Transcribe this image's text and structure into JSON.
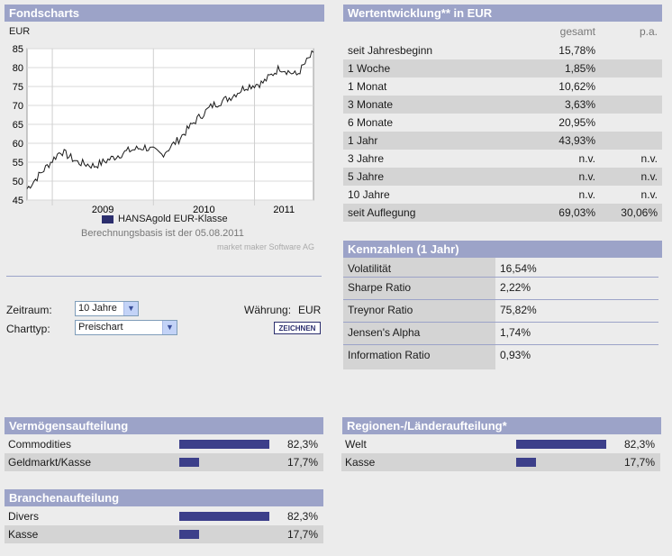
{
  "fondscharts": {
    "title": "Fondscharts",
    "currency_label": "EUR",
    "y_ticks": [
      "85",
      "80",
      "75",
      "70",
      "65",
      "60",
      "55",
      "50",
      "45"
    ],
    "x_ticks": [
      "2009",
      "2010",
      "2011"
    ],
    "legend": "HANSAgold EUR-Klasse",
    "basis": "Berechnungsbasis ist der 05.08.2011",
    "credit": "market maker Software AG"
  },
  "controls": {
    "zeitraum_label": "Zeitraum:",
    "zeitraum_value": "10 Jahre",
    "waehrung_label": "Währung:",
    "waehrung_value": "EUR",
    "charttyp_label": "Charttyp:",
    "charttyp_value": "Preischart",
    "draw_button": "ZEICHNEN"
  },
  "wertentwicklung": {
    "title": "Wertentwicklung** in EUR",
    "col_gesamt": "gesamt",
    "col_pa": "p.a.",
    "rows": [
      {
        "label": "seit Jahresbeginn",
        "gesamt": "15,78%",
        "pa": ""
      },
      {
        "label": "1 Woche",
        "gesamt": "1,85%",
        "pa": ""
      },
      {
        "label": "1 Monat",
        "gesamt": "10,62%",
        "pa": ""
      },
      {
        "label": "3 Monate",
        "gesamt": "3,63%",
        "pa": ""
      },
      {
        "label": "6 Monate",
        "gesamt": "20,95%",
        "pa": ""
      },
      {
        "label": "1 Jahr",
        "gesamt": "43,93%",
        "pa": ""
      },
      {
        "label": "3 Jahre",
        "gesamt": "n.v.",
        "pa": "n.v."
      },
      {
        "label": "5 Jahre",
        "gesamt": "n.v.",
        "pa": "n.v."
      },
      {
        "label": "10 Jahre",
        "gesamt": "n.v.",
        "pa": "n.v."
      },
      {
        "label": "seit Auflegung",
        "gesamt": "69,03%",
        "pa": "30,06%"
      }
    ]
  },
  "kennzahlen": {
    "title": "Kennzahlen (1 Jahr)",
    "rows": [
      {
        "label": "Volatilität",
        "value": "16,54%"
      },
      {
        "label": "Sharpe Ratio",
        "value": "2,22%"
      },
      {
        "label": "Treynor Ratio",
        "value": "75,82%"
      },
      {
        "label": "Jensen's Alpha",
        "value": "1,74%"
      },
      {
        "label": "Information Ratio",
        "value": "0,93%"
      }
    ]
  },
  "vermoegen": {
    "title": "Vermögensaufteilung",
    "rows": [
      {
        "label": "Commodities",
        "value": "82,3%",
        "share": 0.823
      },
      {
        "label": "Geldmarkt/Kasse",
        "value": "17,7%",
        "share": 0.177
      }
    ]
  },
  "branchen": {
    "title": "Branchenaufteilung",
    "rows": [
      {
        "label": "Divers",
        "value": "82,3%",
        "share": 0.823
      },
      {
        "label": "Kasse",
        "value": "17,7%",
        "share": 0.177
      }
    ]
  },
  "regionen": {
    "title": "Regionen-/Länderaufteilung*",
    "rows": [
      {
        "label": "Welt",
        "value": "82,3%",
        "share": 0.823
      },
      {
        "label": "Kasse",
        "value": "17,7%",
        "share": 0.177
      }
    ]
  },
  "colors": {
    "header": "#9ca3c8",
    "bar": "#3c3f8a",
    "line": "#1a1a1a"
  },
  "chart_data": {
    "type": "line",
    "series": [
      {
        "name": "HANSAgold EUR-Klasse",
        "x": [
          "2008-10",
          "2008-12",
          "2009-02",
          "2009-04",
          "2009-06",
          "2009-08",
          "2009-10",
          "2009-12",
          "2010-02",
          "2010-04",
          "2010-06",
          "2010-08",
          "2010-10",
          "2010-12",
          "2011-02",
          "2011-04",
          "2011-06",
          "2011-08"
        ],
        "y": [
          48,
          53,
          58,
          55,
          54,
          56,
          58,
          59,
          57,
          61,
          66,
          70,
          72,
          75,
          76,
          80,
          78,
          84
        ]
      }
    ],
    "ylim": [
      45,
      85
    ],
    "xlabel": "",
    "ylabel": "EUR"
  }
}
